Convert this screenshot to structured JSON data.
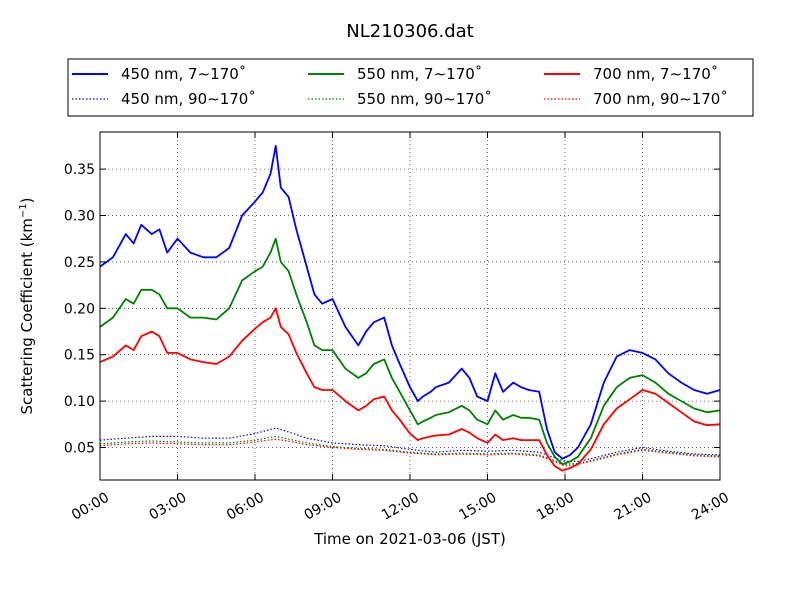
{
  "chart_data": {
    "type": "line",
    "title": "NL210306.dat",
    "xlabel": "Time on 2021-03-06 (JST)",
    "ylabel": "Scattering Coefficient (km",
    "ylabel_unit_sup": "−1",
    "ylabel_close": ")",
    "xlim": [
      0,
      24
    ],
    "ylim": [
      0.015,
      0.39
    ],
    "xticks": [
      {
        "v": 0,
        "label": "00:00"
      },
      {
        "v": 3,
        "label": "03:00"
      },
      {
        "v": 6,
        "label": "06:00"
      },
      {
        "v": 9,
        "label": "09:00"
      },
      {
        "v": 12,
        "label": "12:00"
      },
      {
        "v": 15,
        "label": "15:00"
      },
      {
        "v": 18,
        "label": "18:00"
      },
      {
        "v": 21,
        "label": "21:00"
      },
      {
        "v": 24,
        "label": "24:00"
      }
    ],
    "yticks": [
      {
        "v": 0.05,
        "label": "0.05"
      },
      {
        "v": 0.1,
        "label": "0.10"
      },
      {
        "v": 0.15,
        "label": "0.15"
      },
      {
        "v": 0.2,
        "label": "0.20"
      },
      {
        "v": 0.25,
        "label": "0.25"
      },
      {
        "v": 0.3,
        "label": "0.30"
      },
      {
        "v": 0.35,
        "label": "0.35"
      }
    ],
    "grid": true,
    "legend_position": "top (above plot), 3 columns",
    "series": [
      {
        "name": "450 nm, 7∼170˚",
        "color": "#0000ff",
        "style": "solid",
        "x": [
          0,
          0.5,
          1,
          1.3,
          1.6,
          2,
          2.3,
          2.6,
          3,
          3.5,
          4,
          4.5,
          5,
          5.5,
          6,
          6.3,
          6.6,
          6.8,
          7,
          7.3,
          7.6,
          8,
          8.3,
          8.6,
          9,
          9.5,
          10,
          10.3,
          10.6,
          11,
          11.3,
          11.6,
          12,
          12.3,
          12.5,
          12.8,
          13,
          13.5,
          14,
          14.3,
          14.6,
          15,
          15.3,
          15.6,
          16,
          16.3,
          16.6,
          17,
          17.3,
          17.6,
          17.9,
          18.2,
          18.5,
          19,
          19.5,
          20,
          20.5,
          21,
          21.5,
          22,
          22.5,
          23,
          23.5,
          24
        ],
        "y": [
          0.245,
          0.255,
          0.28,
          0.27,
          0.29,
          0.28,
          0.285,
          0.26,
          0.275,
          0.26,
          0.255,
          0.255,
          0.265,
          0.3,
          0.315,
          0.325,
          0.345,
          0.375,
          0.33,
          0.32,
          0.285,
          0.245,
          0.215,
          0.205,
          0.21,
          0.18,
          0.16,
          0.175,
          0.185,
          0.19,
          0.16,
          0.14,
          0.115,
          0.1,
          0.105,
          0.11,
          0.115,
          0.12,
          0.135,
          0.125,
          0.105,
          0.1,
          0.13,
          0.11,
          0.12,
          0.115,
          0.112,
          0.11,
          0.07,
          0.045,
          0.038,
          0.042,
          0.05,
          0.075,
          0.12,
          0.148,
          0.155,
          0.152,
          0.145,
          0.13,
          0.12,
          0.112,
          0.108,
          0.112
        ]
      },
      {
        "name": "550 nm, 7∼170˚",
        "color": "#008000",
        "style": "solid",
        "x": [
          0,
          0.5,
          1,
          1.3,
          1.6,
          2,
          2.3,
          2.6,
          3,
          3.5,
          4,
          4.5,
          5,
          5.5,
          6,
          6.3,
          6.6,
          6.8,
          7,
          7.3,
          7.6,
          8,
          8.3,
          8.6,
          9,
          9.5,
          10,
          10.3,
          10.6,
          11,
          11.3,
          11.6,
          12,
          12.3,
          12.5,
          12.8,
          13,
          13.5,
          14,
          14.3,
          14.6,
          15,
          15.3,
          15.6,
          16,
          16.3,
          16.6,
          17,
          17.3,
          17.6,
          17.9,
          18.2,
          18.5,
          19,
          19.5,
          20,
          20.5,
          21,
          21.5,
          22,
          22.5,
          23,
          23.5,
          24
        ],
        "y": [
          0.18,
          0.19,
          0.21,
          0.205,
          0.22,
          0.22,
          0.215,
          0.2,
          0.2,
          0.19,
          0.19,
          0.188,
          0.2,
          0.23,
          0.24,
          0.245,
          0.26,
          0.275,
          0.25,
          0.24,
          0.215,
          0.185,
          0.16,
          0.155,
          0.155,
          0.135,
          0.125,
          0.13,
          0.14,
          0.145,
          0.125,
          0.11,
          0.09,
          0.075,
          0.078,
          0.082,
          0.085,
          0.088,
          0.095,
          0.09,
          0.08,
          0.075,
          0.09,
          0.08,
          0.085,
          0.082,
          0.082,
          0.08,
          0.055,
          0.04,
          0.032,
          0.035,
          0.04,
          0.06,
          0.095,
          0.115,
          0.125,
          0.128,
          0.12,
          0.108,
          0.1,
          0.092,
          0.088,
          0.09
        ]
      },
      {
        "name": "700 nm, 7∼170˚",
        "color": "#ff0000",
        "style": "solid",
        "x": [
          0,
          0.5,
          1,
          1.3,
          1.6,
          2,
          2.3,
          2.6,
          3,
          3.5,
          4,
          4.5,
          5,
          5.5,
          6,
          6.3,
          6.6,
          6.8,
          7,
          7.3,
          7.6,
          8,
          8.3,
          8.6,
          9,
          9.5,
          10,
          10.3,
          10.6,
          11,
          11.3,
          11.6,
          12,
          12.3,
          12.5,
          12.8,
          13,
          13.5,
          14,
          14.3,
          14.6,
          15,
          15.3,
          15.6,
          16,
          16.3,
          16.6,
          17,
          17.3,
          17.6,
          17.9,
          18.2,
          18.5,
          19,
          19.5,
          20,
          20.5,
          21,
          21.5,
          22,
          22.5,
          23,
          23.5,
          24
        ],
        "y": [
          0.142,
          0.148,
          0.16,
          0.155,
          0.17,
          0.175,
          0.17,
          0.152,
          0.152,
          0.145,
          0.142,
          0.14,
          0.148,
          0.165,
          0.178,
          0.185,
          0.19,
          0.2,
          0.18,
          0.172,
          0.152,
          0.13,
          0.115,
          0.112,
          0.112,
          0.1,
          0.09,
          0.095,
          0.102,
          0.105,
          0.09,
          0.08,
          0.065,
          0.058,
          0.06,
          0.062,
          0.063,
          0.064,
          0.07,
          0.066,
          0.06,
          0.055,
          0.064,
          0.058,
          0.06,
          0.058,
          0.058,
          0.058,
          0.042,
          0.03,
          0.025,
          0.028,
          0.032,
          0.048,
          0.075,
          0.092,
          0.102,
          0.112,
          0.108,
          0.098,
          0.088,
          0.078,
          0.074,
          0.075
        ]
      },
      {
        "name": "450 nm, 90∼170˚",
        "color": "#0000ff",
        "style": "dotted",
        "x": [
          0,
          1,
          2,
          3,
          4,
          5,
          6,
          6.8,
          7.5,
          8,
          9,
          10,
          11,
          12,
          13,
          14,
          15,
          16,
          17,
          17.5,
          18,
          18.5,
          19,
          20,
          21,
          22,
          23,
          24
        ],
        "y": [
          0.058,
          0.06,
          0.062,
          0.062,
          0.06,
          0.06,
          0.065,
          0.071,
          0.065,
          0.06,
          0.055,
          0.053,
          0.052,
          0.048,
          0.045,
          0.047,
          0.046,
          0.047,
          0.045,
          0.04,
          0.035,
          0.035,
          0.038,
          0.045,
          0.05,
          0.046,
          0.043,
          0.042
        ]
      },
      {
        "name": "550 nm, 90∼170˚",
        "color": "#008000",
        "style": "dotted",
        "x": [
          0,
          1,
          2,
          3,
          4,
          5,
          6,
          6.8,
          7.5,
          8,
          9,
          10,
          11,
          12,
          13,
          14,
          15,
          16,
          17,
          17.5,
          18,
          18.5,
          19,
          20,
          21,
          22,
          23,
          24
        ],
        "y": [
          0.054,
          0.056,
          0.057,
          0.056,
          0.055,
          0.055,
          0.058,
          0.062,
          0.058,
          0.055,
          0.051,
          0.049,
          0.048,
          0.045,
          0.043,
          0.044,
          0.043,
          0.044,
          0.042,
          0.037,
          0.032,
          0.033,
          0.036,
          0.043,
          0.048,
          0.045,
          0.042,
          0.041
        ]
      },
      {
        "name": "700 nm, 90∼170˚",
        "color": "#ff0000",
        "style": "dotted",
        "x": [
          0,
          1,
          2,
          3,
          4,
          5,
          6,
          6.8,
          7.5,
          8,
          9,
          10,
          11,
          12,
          13,
          14,
          15,
          16,
          17,
          17.5,
          18,
          18.5,
          19,
          20,
          21,
          22,
          23,
          24
        ],
        "y": [
          0.052,
          0.054,
          0.055,
          0.054,
          0.053,
          0.053,
          0.056,
          0.059,
          0.056,
          0.053,
          0.05,
          0.048,
          0.047,
          0.044,
          0.042,
          0.043,
          0.042,
          0.043,
          0.041,
          0.036,
          0.03,
          0.032,
          0.035,
          0.042,
          0.047,
          0.044,
          0.041,
          0.04
        ]
      }
    ]
  }
}
